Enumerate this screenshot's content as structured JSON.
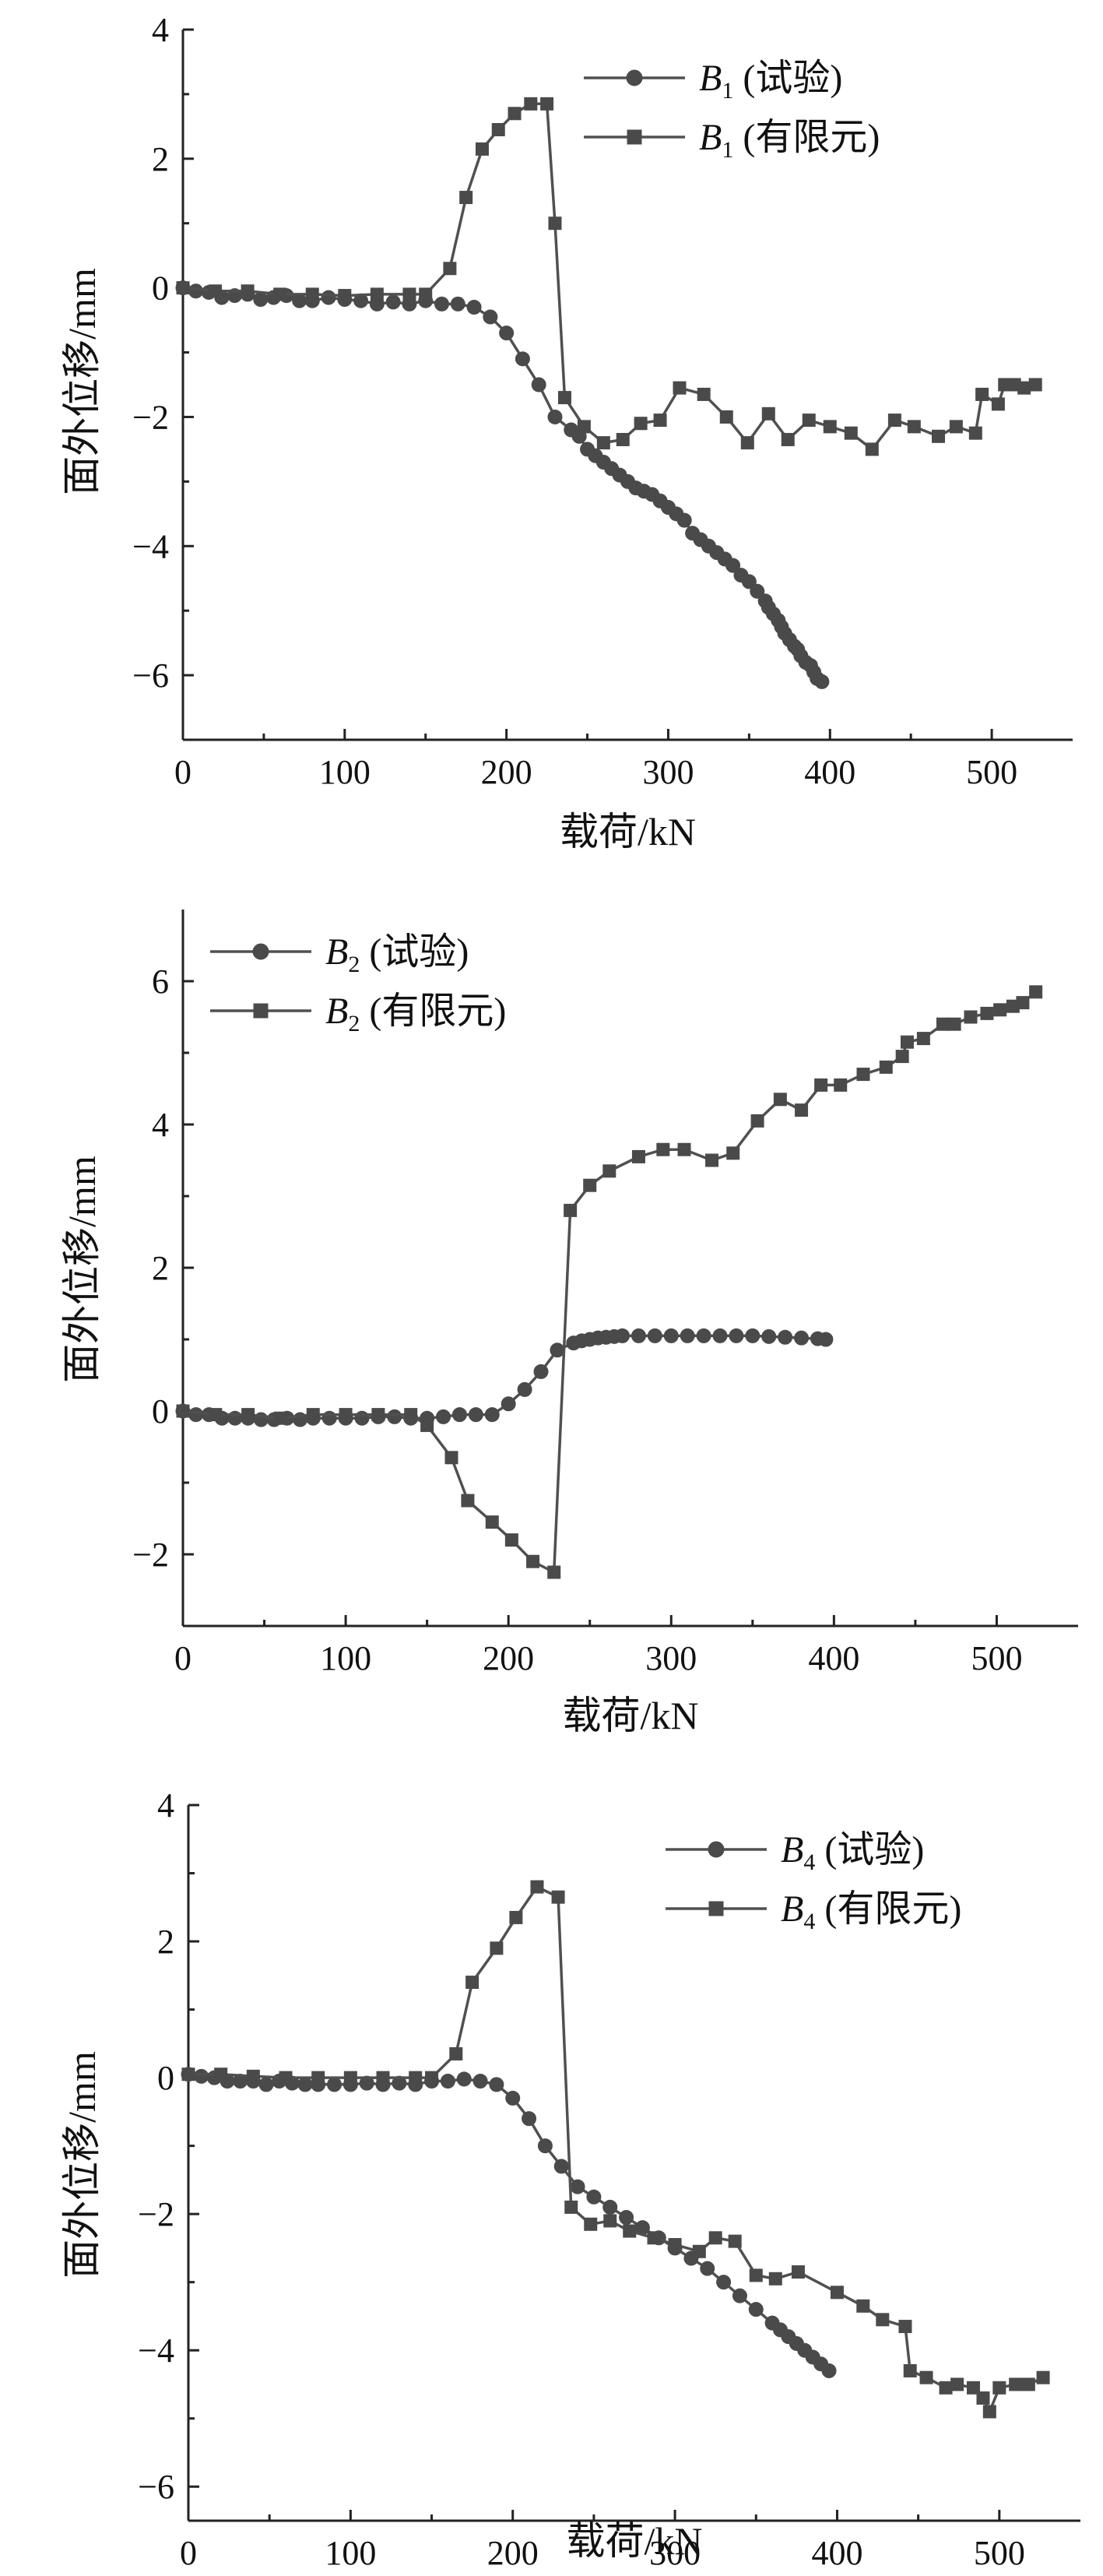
{
  "chart_data": [
    {
      "type": "line",
      "xlabel": "载荷/kN",
      "ylabel": "面外位移/mm",
      "xlim": [
        0,
        550
      ],
      "ylim": [
        -7,
        4
      ],
      "xticks": [
        0,
        100,
        200,
        300,
        400,
        500
      ],
      "yticks": [
        4,
        2,
        0,
        -2,
        -4,
        -6
      ],
      "xtick_labels": [
        "0",
        "100",
        "200",
        "300",
        "400",
        "500"
      ],
      "ytick_labels": [
        "4",
        "2",
        "0",
        "−2",
        "−4",
        "−6"
      ],
      "legend_position": "top-right",
      "series": [
        {
          "name_main": "B",
          "name_sub": "1",
          "name_suffix": " (试验)",
          "marker": "circle",
          "x": [
            0,
            8,
            16,
            24,
            32,
            40,
            48,
            56,
            64,
            72,
            80,
            90,
            100,
            110,
            120,
            130,
            140,
            150,
            160,
            170,
            180,
            190,
            200,
            210,
            220,
            230,
            240,
            245,
            250,
            255,
            260,
            265,
            270,
            275,
            280,
            285,
            290,
            295,
            300,
            305,
            310,
            315,
            320,
            325,
            330,
            335,
            340,
            345,
            350,
            355,
            360,
            362,
            365,
            368,
            370,
            372,
            375,
            378,
            380,
            382,
            385,
            388,
            390,
            392,
            395
          ],
          "y": [
            0,
            -0.05,
            -0.07,
            -0.15,
            -0.12,
            -0.1,
            -0.18,
            -0.15,
            -0.12,
            -0.2,
            -0.2,
            -0.15,
            -0.18,
            -0.2,
            -0.25,
            -0.22,
            -0.25,
            -0.2,
            -0.25,
            -0.25,
            -0.3,
            -0.45,
            -0.7,
            -1.1,
            -1.5,
            -2,
            -2.2,
            -2.3,
            -2.5,
            -2.6,
            -2.7,
            -2.8,
            -2.9,
            -3,
            -3.1,
            -3.15,
            -3.2,
            -3.3,
            -3.4,
            -3.5,
            -3.6,
            -3.8,
            -3.9,
            -4,
            -4.1,
            -4.2,
            -4.3,
            -4.45,
            -4.55,
            -4.7,
            -4.85,
            -4.95,
            -5.05,
            -5.15,
            -5.25,
            -5.35,
            -5.45,
            -5.55,
            -5.6,
            -5.7,
            -5.8,
            -5.85,
            -5.95,
            -6.05,
            -6.1
          ]
        },
        {
          "name_main": "B",
          "name_sub": "1",
          "name_suffix": " (有限元)",
          "marker": "square",
          "x": [
            0,
            20,
            40,
            60,
            80,
            100,
            120,
            140,
            150,
            165,
            175,
            185,
            195,
            205,
            215,
            225,
            230,
            236,
            248,
            260,
            272,
            283,
            295,
            307,
            322,
            336,
            349,
            362,
            374,
            387,
            400,
            413,
            426,
            440,
            452,
            467,
            478,
            490,
            494,
            504,
            508,
            514,
            520,
            527
          ],
          "y": [
            0,
            -0.05,
            -0.05,
            -0.1,
            -0.1,
            -0.12,
            -0.1,
            -0.1,
            -0.1,
            0.3,
            1.4,
            2.15,
            2.45,
            2.7,
            2.85,
            2.85,
            1.0,
            -1.7,
            -2.15,
            -2.4,
            -2.35,
            -2.1,
            -2.05,
            -1.55,
            -1.65,
            -2.0,
            -2.4,
            -1.95,
            -2.35,
            -2.05,
            -2.15,
            -2.25,
            -2.5,
            -2.05,
            -2.15,
            -2.3,
            -2.15,
            -2.25,
            -1.65,
            -1.8,
            -1.5,
            -1.5,
            -1.55,
            -1.5
          ]
        }
      ]
    },
    {
      "type": "line",
      "xlabel": "载荷/kN",
      "ylabel": "面外位移/mm",
      "xlim": [
        0,
        550
      ],
      "ylim": [
        -3,
        7
      ],
      "xticks": [
        0,
        100,
        200,
        300,
        400,
        500
      ],
      "yticks": [
        6,
        4,
        2,
        0,
        -2
      ],
      "xtick_labels": [
        "0",
        "100",
        "200",
        "300",
        "400",
        "500"
      ],
      "ytick_labels": [
        "6",
        "4",
        "2",
        "0",
        "−2"
      ],
      "legend_position": "top-left",
      "series": [
        {
          "name_main": "B",
          "name_sub": "2",
          "name_suffix": " (试验)",
          "marker": "circle",
          "x": [
            0,
            8,
            16,
            24,
            32,
            40,
            48,
            56,
            64,
            72,
            80,
            90,
            100,
            110,
            120,
            130,
            140,
            150,
            160,
            170,
            180,
            190,
            200,
            210,
            220,
            230,
            240,
            245,
            250,
            255,
            260,
            265,
            270,
            280,
            290,
            300,
            310,
            320,
            330,
            340,
            350,
            360,
            370,
            380,
            390,
            395
          ],
          "y": [
            0,
            -0.05,
            -0.05,
            -0.1,
            -0.1,
            -0.1,
            -0.12,
            -0.12,
            -0.1,
            -0.12,
            -0.1,
            -0.1,
            -0.1,
            -0.1,
            -0.08,
            -0.08,
            -0.1,
            -0.1,
            -0.08,
            -0.05,
            -0.05,
            -0.05,
            0.1,
            0.3,
            0.55,
            0.85,
            0.95,
            0.98,
            1.0,
            1.02,
            1.03,
            1.04,
            1.05,
            1.05,
            1.05,
            1.05,
            1.05,
            1.05,
            1.05,
            1.05,
            1.05,
            1.04,
            1.03,
            1.02,
            1.01,
            1.0
          ]
        },
        {
          "name_main": "B",
          "name_sub": "2",
          "name_suffix": " (有限元)",
          "marker": "square",
          "x": [
            0,
            20,
            40,
            60,
            80,
            100,
            120,
            140,
            150,
            165,
            175,
            190,
            202,
            215,
            228,
            238,
            250,
            262,
            280,
            295,
            308,
            325,
            338,
            353,
            367,
            380,
            392,
            404,
            418,
            432,
            442,
            445,
            455,
            467,
            474,
            484,
            494,
            502,
            510,
            516,
            524
          ],
          "y": [
            0,
            -0.05,
            -0.05,
            -0.1,
            -0.05,
            -0.05,
            -0.05,
            -0.05,
            -0.2,
            -0.65,
            -1.25,
            -1.55,
            -1.8,
            -2.1,
            -2.25,
            2.8,
            3.15,
            3.35,
            3.55,
            3.65,
            3.65,
            3.5,
            3.6,
            4.05,
            4.35,
            4.2,
            4.55,
            4.55,
            4.7,
            4.8,
            4.95,
            5.15,
            5.2,
            5.4,
            5.4,
            5.5,
            5.55,
            5.6,
            5.65,
            5.7,
            5.85
          ]
        }
      ]
    },
    {
      "type": "line",
      "xlabel": "载荷/kN",
      "ylabel": "面外位移/mm",
      "xlim": [
        0,
        550
      ],
      "ylim": [
        -6.5,
        4
      ],
      "xticks": [
        0,
        100,
        200,
        300,
        400,
        500
      ],
      "yticks": [
        4,
        2,
        0,
        -2,
        -4,
        -6
      ],
      "xtick_labels": [
        "0",
        "100",
        "200",
        "300",
        "400",
        "500"
      ],
      "ytick_labels": [
        "4",
        "2",
        "0",
        "−2",
        "−4",
        "−6"
      ],
      "legend_position": "top-right",
      "series": [
        {
          "name_main": "B",
          "name_sub": "4",
          "name_suffix": " (试验)",
          "marker": "circle",
          "x": [
            0,
            8,
            16,
            24,
            32,
            40,
            48,
            56,
            64,
            72,
            80,
            90,
            100,
            110,
            120,
            130,
            140,
            150,
            160,
            170,
            180,
            190,
            200,
            210,
            220,
            230,
            240,
            250,
            260,
            270,
            280,
            290,
            300,
            310,
            320,
            330,
            340,
            350,
            360,
            365,
            370,
            375,
            380,
            385,
            390,
            395
          ],
          "y": [
            0.05,
            0.02,
            0,
            -0.05,
            -0.05,
            -0.05,
            -0.1,
            -0.05,
            -0.08,
            -0.1,
            -0.1,
            -0.1,
            -0.1,
            -0.08,
            -0.1,
            -0.08,
            -0.1,
            -0.05,
            -0.05,
            -0.02,
            -0.05,
            -0.1,
            -0.3,
            -0.6,
            -1.0,
            -1.3,
            -1.6,
            -1.75,
            -1.9,
            -2.05,
            -2.2,
            -2.35,
            -2.5,
            -2.65,
            -2.8,
            -3.0,
            -3.2,
            -3.4,
            -3.6,
            -3.7,
            -3.8,
            -3.9,
            -4.0,
            -4.1,
            -4.2,
            -4.3
          ]
        },
        {
          "name_main": "B",
          "name_sub": "4",
          "name_suffix": " (有限元)",
          "marker": "square",
          "x": [
            0,
            20,
            40,
            60,
            80,
            100,
            120,
            140,
            150,
            165,
            175,
            190,
            202,
            215,
            228,
            236,
            248,
            260,
            272,
            287,
            300,
            315,
            325,
            337,
            350,
            362,
            376,
            400,
            416,
            428,
            442,
            445,
            455,
            467,
            474,
            484,
            490,
            494,
            500,
            510,
            518,
            527
          ],
          "y": [
            0.05,
            0.05,
            0.02,
            0,
            0,
            0,
            0,
            0,
            0,
            0.35,
            1.4,
            1.9,
            2.35,
            2.8,
            2.65,
            -1.9,
            -2.15,
            -2.1,
            -2.25,
            -2.35,
            -2.45,
            -2.55,
            -2.35,
            -2.4,
            -2.9,
            -2.95,
            -2.85,
            -3.15,
            -3.35,
            -3.55,
            -3.65,
            -4.3,
            -4.4,
            -4.55,
            -4.5,
            -4.55,
            -4.7,
            -4.9,
            -4.55,
            -4.5,
            -4.5,
            -4.4
          ]
        }
      ]
    }
  ]
}
